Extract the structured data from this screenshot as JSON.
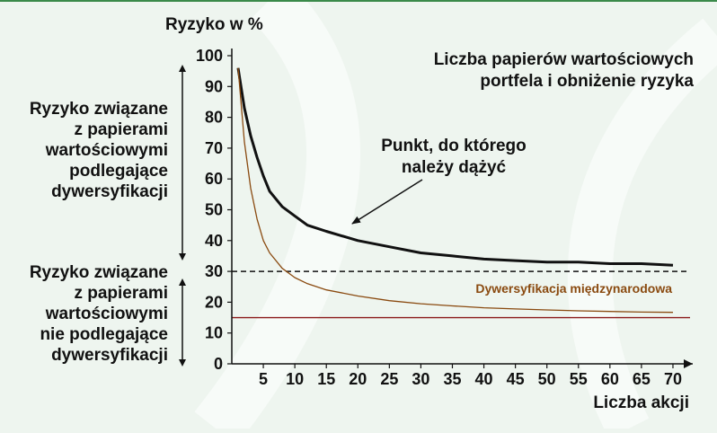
{
  "chart_data": {
    "type": "line",
    "title": "Liczba papierów wartościowych portfela i obniżenie ryzyka",
    "title_lines": [
      "Liczba papierów wartościowych",
      "portfela i obniżenie ryzyka"
    ],
    "ylabel": "Ryzyko w %",
    "xlabel": "Liczba akcji",
    "xlim": [
      0,
      72
    ],
    "ylim": [
      0,
      100
    ],
    "x_ticks": [
      5,
      10,
      15,
      20,
      25,
      30,
      35,
      40,
      45,
      50,
      55,
      60,
      65,
      70
    ],
    "y_ticks": [
      0,
      10,
      20,
      30,
      40,
      50,
      60,
      70,
      80,
      90,
      100
    ],
    "grid": false,
    "series": [
      {
        "x": [
          1,
          2,
          3,
          4,
          5,
          6,
          8,
          10,
          12,
          15,
          20,
          25,
          30,
          35,
          40,
          45,
          50,
          55,
          60,
          65,
          70
        ],
        "y": [
          96,
          83,
          74,
          67,
          61,
          56,
          51,
          48,
          45,
          43,
          40,
          38,
          36,
          35,
          34,
          33.5,
          33,
          33,
          32.5,
          32.5,
          32
        ],
        "color": "#111111"
      },
      {
        "name": "Dywersyfikacja międzynarodowa",
        "x": [
          1,
          2,
          3,
          4,
          5,
          6,
          8,
          10,
          12,
          15,
          20,
          25,
          30,
          35,
          40,
          45,
          50,
          55,
          60,
          65,
          70
        ],
        "y": [
          96,
          72,
          57,
          47,
          40,
          36,
          31,
          28,
          26,
          24,
          22,
          20.5,
          19.5,
          18.8,
          18.2,
          17.8,
          17.5,
          17.2,
          17.0,
          16.8,
          16.7
        ],
        "color": "#8a4a10"
      }
    ],
    "reference_lines": [
      {
        "y": 30,
        "style": "dashed",
        "color": "#111111"
      },
      {
        "y": 15,
        "style": "solid",
        "color": "#8b1a1a"
      }
    ],
    "annotations": {
      "point_label_lines": [
        "Punkt, do którego",
        "należy dążyć"
      ],
      "diversifiable_lines": [
        "Ryzyko związane",
        "z papierami",
        "wartościowymi",
        "podlegające",
        "dywersyfikacji"
      ],
      "nondiversifiable_lines": [
        "Ryzyko związane",
        "z papierami",
        "wartościowymi",
        "nie podlegające",
        "dywersyfikacji"
      ]
    },
    "colors": {
      "axis": "#111111",
      "intl_label": "#8a4a10",
      "background": "#eef5ef"
    }
  }
}
